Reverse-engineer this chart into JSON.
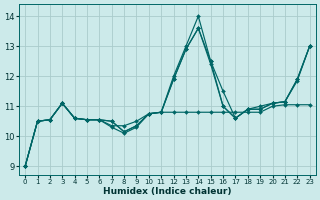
{
  "xlabel": "Humidex (Indice chaleur)",
  "background_color": "#cceaea",
  "grid_color": "#aacccc",
  "line_color": "#006666",
  "xlim": [
    -0.5,
    23.5
  ],
  "ylim": [
    8.7,
    14.4
  ],
  "xticks": [
    0,
    1,
    2,
    3,
    4,
    5,
    6,
    7,
    8,
    9,
    10,
    11,
    12,
    13,
    14,
    15,
    16,
    17,
    18,
    19,
    20,
    21,
    22,
    23
  ],
  "yticks": [
    9,
    10,
    11,
    12,
    13,
    14
  ],
  "lines": [
    [
      9.0,
      10.5,
      10.55,
      11.1,
      10.6,
      10.55,
      10.55,
      10.5,
      10.15,
      10.35,
      10.75,
      10.8,
      12.0,
      13.0,
      14.0,
      12.5,
      11.5,
      10.6,
      10.9,
      11.0,
      11.1,
      11.15,
      11.9,
      13.0
    ],
    [
      9.0,
      10.5,
      10.55,
      11.1,
      10.6,
      10.55,
      10.55,
      10.5,
      10.15,
      10.35,
      10.75,
      10.8,
      11.9,
      12.9,
      13.6,
      12.5,
      11.0,
      10.6,
      10.9,
      10.9,
      11.1,
      11.15,
      11.9,
      13.0
    ],
    [
      9.0,
      10.5,
      10.55,
      11.1,
      10.6,
      10.55,
      10.55,
      10.35,
      10.35,
      10.5,
      10.75,
      10.8,
      10.8,
      10.8,
      10.8,
      10.8,
      10.8,
      10.8,
      10.8,
      10.8,
      11.0,
      11.05,
      11.05,
      11.05
    ],
    [
      9.0,
      10.5,
      10.55,
      11.1,
      10.6,
      10.55,
      10.55,
      10.3,
      10.1,
      10.3,
      10.75,
      10.8,
      11.9,
      12.9,
      13.6,
      12.4,
      11.0,
      10.6,
      10.9,
      10.9,
      11.1,
      11.15,
      11.85,
      13.0
    ]
  ]
}
